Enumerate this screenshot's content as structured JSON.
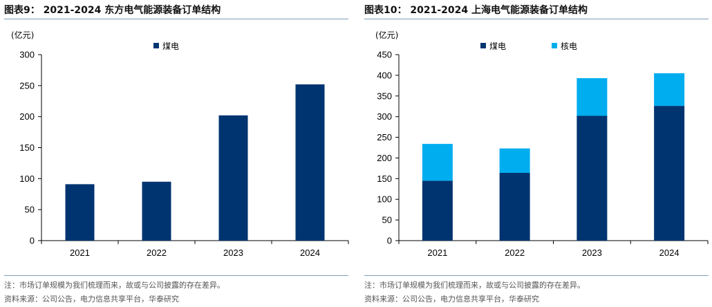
{
  "panels": [
    {
      "title": "图表9： 2021-2024 东方电气能源装备订单结构",
      "unit": "(亿元)",
      "note": "注：市场订单规模为我们梳理而来，故或与公司披露的存在差异。",
      "source": "资料来源：公司公告，电力信息共享平台，华泰研究"
    },
    {
      "title": "图表10： 2021-2024 上海电气能源装备订单结构",
      "unit": "(亿元)",
      "note": "注：市场订单规模为我们梳理而来，故或与公司披露的存在差异。",
      "source": "资料来源：公司公告，电力信息共享平台，华泰研究"
    }
  ],
  "colors": {
    "coal": "#003471",
    "nuclear": "#00adef",
    "axis": "#000000"
  },
  "chart_data": [
    {
      "type": "bar",
      "stacked": true,
      "categories": [
        "2021",
        "2022",
        "2023",
        "2024"
      ],
      "series": [
        {
          "name": "煤电",
          "values": [
            91,
            95,
            202,
            252
          ],
          "color": "#003471"
        }
      ],
      "ylabel": "(亿元)",
      "ylim": [
        0,
        300
      ],
      "yticks": [
        0,
        50,
        100,
        150,
        200,
        250,
        300
      ],
      "grid": false,
      "legend": "top-center"
    },
    {
      "type": "bar",
      "stacked": true,
      "categories": [
        "2021",
        "2022",
        "2023",
        "2024"
      ],
      "series": [
        {
          "name": "煤电",
          "values": [
            145,
            164,
            302,
            326
          ],
          "color": "#003471"
        },
        {
          "name": "核电",
          "values": [
            89,
            59,
            91,
            79
          ],
          "color": "#00adef"
        }
      ],
      "ylabel": "(亿元)",
      "ylim": [
        0,
        450
      ],
      "yticks": [
        0,
        50,
        100,
        150,
        200,
        250,
        300,
        350,
        400,
        450
      ],
      "grid": false,
      "legend": "top-center"
    }
  ]
}
